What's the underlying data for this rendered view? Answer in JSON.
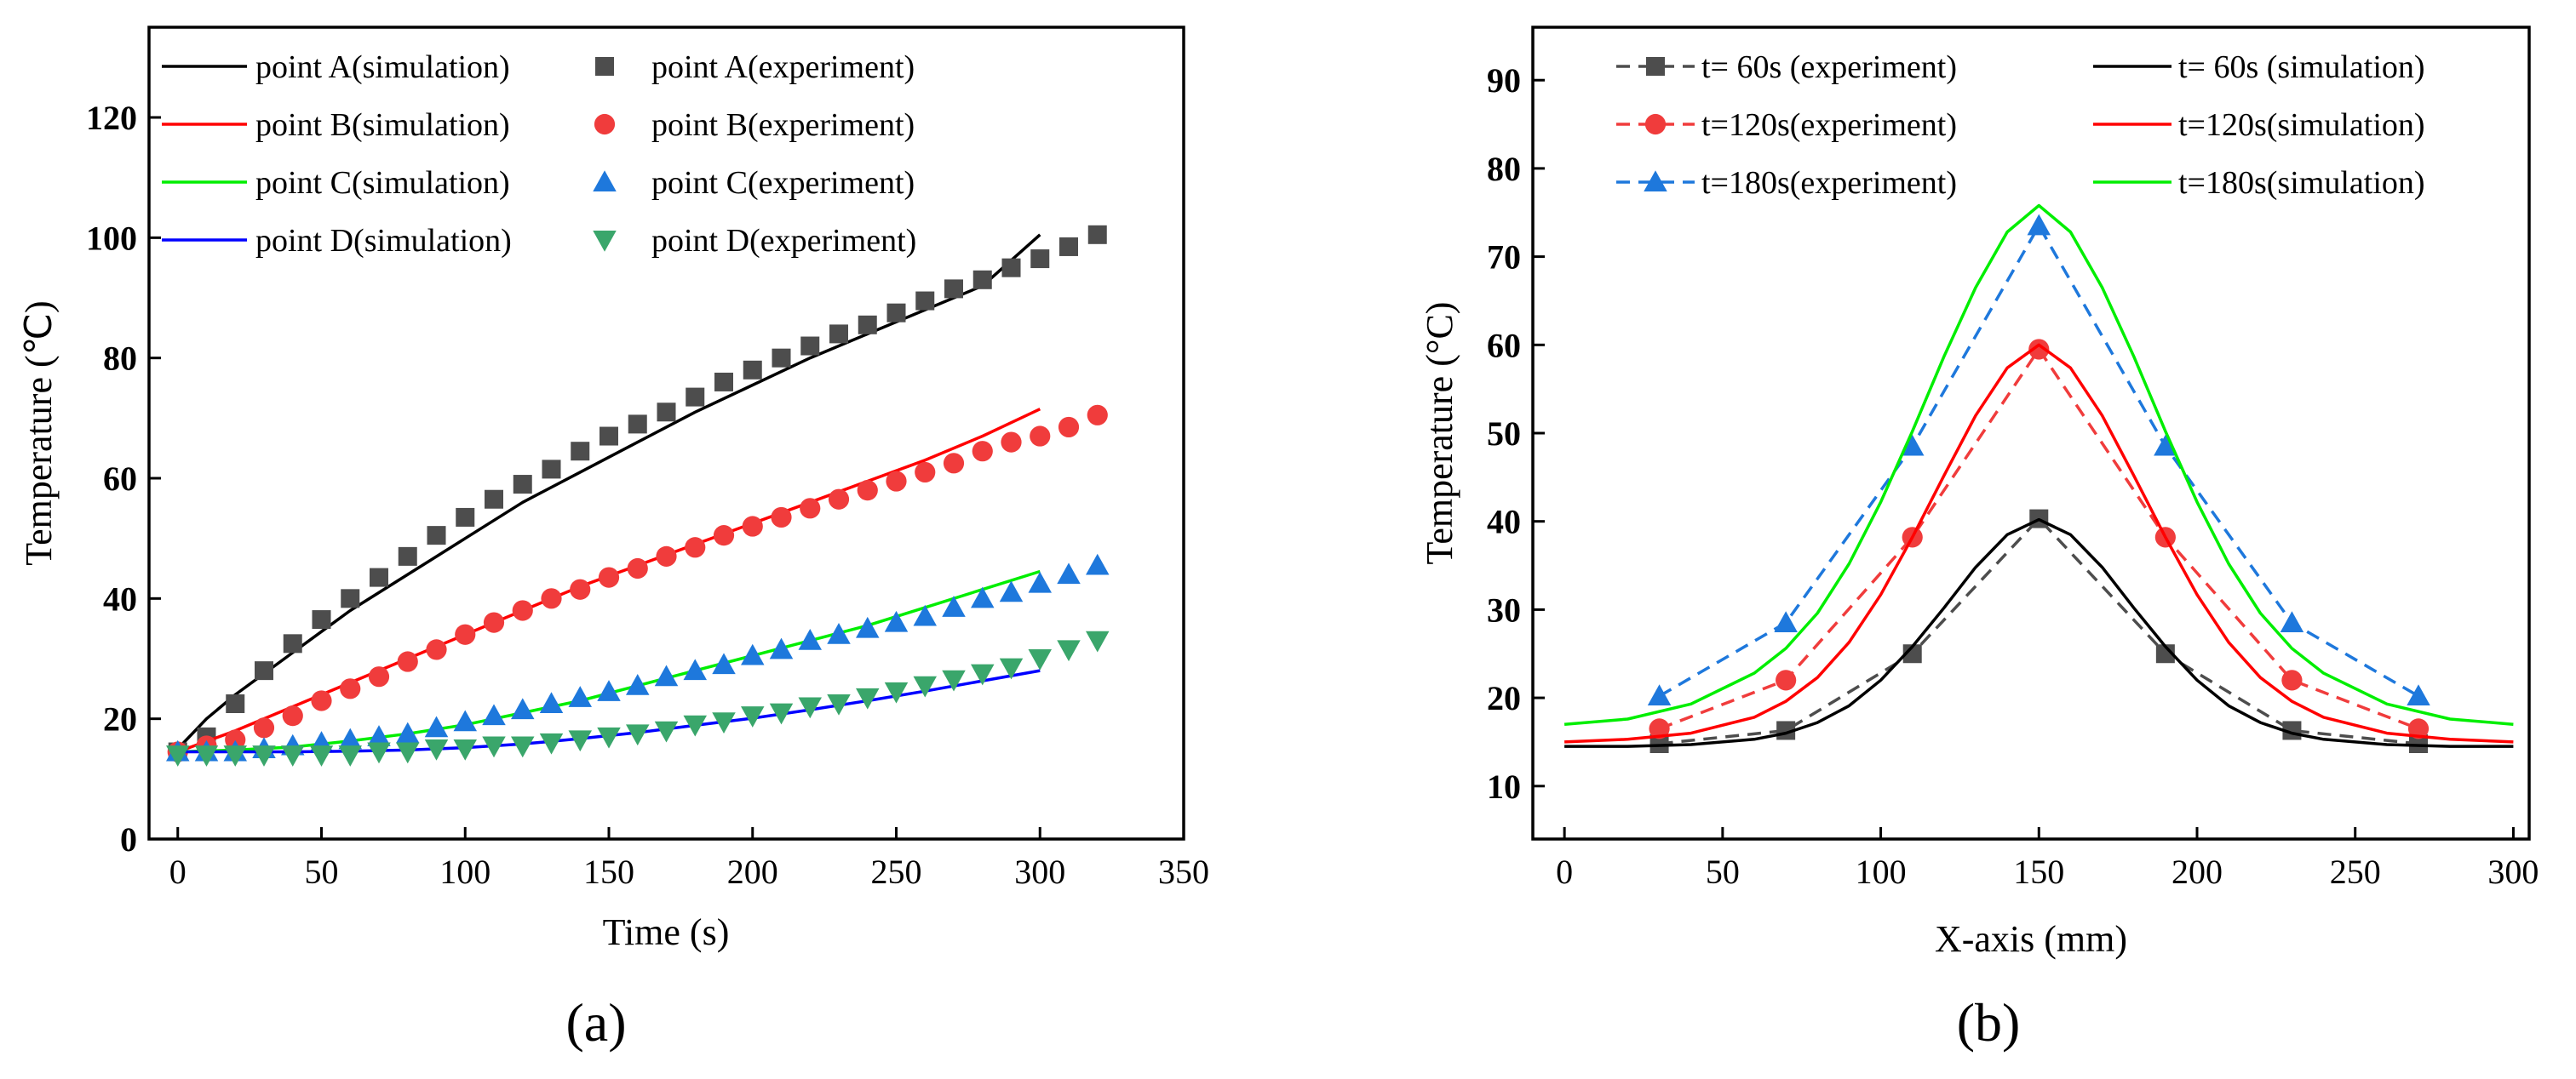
{
  "panels": [
    {
      "label": "(a)",
      "chart_data": {
        "type": "line",
        "title": "",
        "xlabel": "Time (s)",
        "ylabel": "Temperature (℃)",
        "xlim": [
          -10,
          350
        ],
        "ylim": [
          0,
          135
        ],
        "xticks": [
          0,
          50,
          100,
          150,
          200,
          250,
          300,
          350
        ],
        "yticks": [
          0,
          20,
          40,
          60,
          80,
          100,
          120
        ],
        "grid": false,
        "legend_position": "top-left",
        "legend_columns": 2,
        "series": [
          {
            "name": "point A(simulation)",
            "kind": "line",
            "color": "#000000",
            "x": [
              0,
              10,
              20,
              40,
              60,
              80,
              100,
              120,
              140,
              160,
              180,
              200,
              220,
              240,
              260,
              280,
              300
            ],
            "y": [
              15,
              20,
              24,
              31,
              38,
              44,
              50,
              56,
              61,
              66,
              71,
              75.5,
              80,
              84,
              88,
              92,
              100.5
            ]
          },
          {
            "name": "point A(experiment)",
            "kind": "marker",
            "marker": "square",
            "color": "#4d4d4d",
            "x": [
              0,
              10,
              20,
              30,
              40,
              50,
              60,
              70,
              80,
              90,
              100,
              110,
              120,
              130,
              140,
              150,
              160,
              170,
              180,
              190,
              200,
              210,
              220,
              230,
              240,
              250,
              260,
              270,
              280,
              290,
              300,
              310,
              320
            ],
            "y": [
              14.5,
              17,
              22.5,
              28,
              32.5,
              36.5,
              40,
              43.5,
              47,
              50.5,
              53.5,
              56.5,
              59,
              61.5,
              64.5,
              67,
              69,
              71,
              73.5,
              76,
              78,
              80,
              82,
              84,
              85.5,
              87.5,
              89.5,
              91.5,
              93,
              95,
              96.5,
              98.5,
              100.5
            ]
          },
          {
            "name": "point B(simulation)",
            "kind": "line",
            "color": "#ff0000",
            "x": [
              0,
              20,
              40,
              60,
              80,
              100,
              120,
              140,
              160,
              180,
              200,
              220,
              240,
              260,
              280,
              300
            ],
            "y": [
              14.5,
              18,
              22,
              26,
              30,
              34,
              38,
              42,
              45.5,
              49,
              52.5,
              56,
              59.5,
              63,
              67,
              71.5
            ]
          },
          {
            "name": "point B(experiment)",
            "kind": "marker",
            "marker": "circle",
            "color": "#f03c3c",
            "x": [
              0,
              10,
              20,
              30,
              40,
              50,
              60,
              70,
              80,
              90,
              100,
              110,
              120,
              130,
              140,
              150,
              160,
              170,
              180,
              190,
              200,
              210,
              220,
              230,
              240,
              250,
              260,
              270,
              280,
              290,
              300,
              310,
              320
            ],
            "y": [
              14.5,
              15.5,
              16.5,
              18.5,
              20.5,
              23,
              25,
              27,
              29.5,
              31.5,
              34,
              36,
              38,
              40,
              41.5,
              43.5,
              45,
              47,
              48.5,
              50.5,
              52,
              53.5,
              55,
              56.5,
              58,
              59.5,
              61,
              62.5,
              64.5,
              66,
              67,
              68.5,
              70.5
            ]
          },
          {
            "name": "point C(simulation)",
            "kind": "line",
            "color": "#00ee00",
            "x": [
              0,
              20,
              40,
              60,
              80,
              100,
              120,
              140,
              160,
              180,
              200,
              220,
              240,
              260,
              280,
              300
            ],
            "y": [
              14.5,
              14.8,
              15.3,
              16.3,
              17.5,
              19,
              21,
              23,
              25.5,
              28,
              30.5,
              33,
              35.5,
              38.5,
              41.5,
              44.5
            ]
          },
          {
            "name": "point C(experiment)",
            "kind": "marker",
            "marker": "triangle-up",
            "color": "#1e78dc",
            "x": [
              0,
              10,
              20,
              30,
              40,
              50,
              60,
              70,
              80,
              90,
              100,
              110,
              120,
              130,
              140,
              150,
              160,
              170,
              180,
              190,
              200,
              210,
              220,
              230,
              240,
              250,
              260,
              270,
              280,
              290,
              300,
              310,
              320
            ],
            "y": [
              14.5,
              14.5,
              14.5,
              15,
              15.5,
              16,
              16.5,
              17,
              17.5,
              18.5,
              19.5,
              20.5,
              21.5,
              22.5,
              23.5,
              24.5,
              25.5,
              27,
              28,
              29,
              30.5,
              31.5,
              33,
              34,
              35,
              36,
              37,
              38.5,
              40,
              41,
              42.5,
              44,
              45.5
            ]
          },
          {
            "name": "point D(simulation)",
            "kind": "line",
            "color": "#0000ff",
            "x": [
              0,
              20,
              40,
              60,
              80,
              100,
              120,
              140,
              160,
              180,
              200,
              220,
              240,
              260,
              280,
              300
            ],
            "y": [
              14.5,
              14.5,
              14.5,
              14.6,
              14.8,
              15.2,
              15.8,
              16.7,
              17.7,
              18.9,
              20.1,
              21.5,
              23,
              24.6,
              26.3,
              28
            ]
          },
          {
            "name": "point D(experiment)",
            "kind": "marker",
            "marker": "triangle-down",
            "color": "#3aa66b",
            "x": [
              0,
              10,
              20,
              30,
              40,
              50,
              60,
              70,
              80,
              90,
              100,
              110,
              120,
              130,
              140,
              150,
              160,
              170,
              180,
              190,
              200,
              210,
              220,
              230,
              240,
              250,
              260,
              270,
              280,
              290,
              300,
              310,
              320
            ],
            "y": [
              14,
              14,
              14,
              14,
              14,
              14,
              14,
              14.5,
              14.5,
              15,
              15,
              15.5,
              15.5,
              16,
              16.5,
              17,
              17.5,
              18,
              19,
              19.5,
              20.5,
              21,
              22,
              22.5,
              23.5,
              24.5,
              25.5,
              26.5,
              27.5,
              28.5,
              30,
              31.5,
              33
            ]
          }
        ]
      }
    },
    {
      "label": "(b)",
      "chart_data": {
        "type": "line",
        "title": "",
        "xlabel": "X-axis (mm)",
        "ylabel": "Temperature (°C)",
        "xlim": [
          -10,
          305
        ],
        "ylim": [
          4,
          96
        ],
        "xticks": [
          0,
          50,
          100,
          150,
          200,
          250,
          300
        ],
        "yticks": [
          10,
          20,
          30,
          40,
          50,
          60,
          70,
          80,
          90
        ],
        "grid": false,
        "legend_position": "top",
        "legend_columns": 2,
        "series": [
          {
            "name": "t= 60s (experiment)",
            "kind": "dashed-marker",
            "marker": "square",
            "color": "#4d4d4d",
            "x": [
              30,
              70,
              110,
              150,
              190,
              230,
              270
            ],
            "y": [
              14.8,
              16.3,
              25,
              40.3,
              25,
              16.3,
              14.8
            ]
          },
          {
            "name": "t= 60s (simulation)",
            "kind": "line",
            "color": "#000000",
            "x": [
              0,
              20,
              40,
              60,
              70,
              80,
              90,
              100,
              110,
              120,
              130,
              140,
              150,
              160,
              170,
              180,
              190,
              200,
              210,
              220,
              230,
              240,
              260,
              280,
              300
            ],
            "y": [
              14.5,
              14.5,
              14.7,
              15.3,
              16,
              17.2,
              19.1,
              22,
              25.8,
              30.2,
              34.8,
              38.5,
              40.2,
              38.5,
              34.8,
              30.2,
              25.8,
              22,
              19.1,
              17.2,
              16,
              15.3,
              14.7,
              14.5,
              14.5
            ]
          },
          {
            "name": "t=120s(experiment)",
            "kind": "dashed-marker",
            "marker": "circle",
            "color": "#f03c3c",
            "x": [
              30,
              70,
              110,
              150,
              190,
              230,
              270
            ],
            "y": [
              16.5,
              22,
              38.2,
              59.5,
              38.2,
              22,
              16.5
            ]
          },
          {
            "name": "t=120s(simulation)",
            "kind": "line",
            "color": "#ff0000",
            "x": [
              0,
              20,
              40,
              60,
              70,
              80,
              90,
              100,
              110,
              120,
              130,
              140,
              150,
              160,
              170,
              180,
              190,
              200,
              210,
              220,
              230,
              240,
              260,
              280,
              300
            ],
            "y": [
              15,
              15.3,
              16,
              17.8,
              19.6,
              22.3,
              26.3,
              31.7,
              38.2,
              45.2,
              52,
              57.4,
              60,
              57.4,
              52,
              45.2,
              38.2,
              31.7,
              26.3,
              22.3,
              19.6,
              17.8,
              16,
              15.3,
              15
            ]
          },
          {
            "name": "t=180s(experiment)",
            "kind": "dashed-marker",
            "marker": "triangle-up",
            "color": "#1e78dc",
            "x": [
              30,
              70,
              110,
              150,
              190,
              230,
              270
            ],
            "y": [
              20.2,
              28.5,
              48.5,
              73.5,
              48.5,
              28.5,
              20.2
            ]
          },
          {
            "name": "t=180s(simulation)",
            "kind": "line",
            "color": "#00ee00",
            "x": [
              0,
              20,
              40,
              60,
              70,
              80,
              90,
              100,
              110,
              120,
              130,
              140,
              150,
              160,
              170,
              180,
              190,
              200,
              210,
              220,
              230,
              240,
              260,
              280,
              300
            ],
            "y": [
              17,
              17.6,
              19.3,
              22.8,
              25.6,
              29.6,
              35.2,
              42.2,
              50.2,
              58.7,
              66.5,
              72.8,
              75.8,
              72.8,
              66.5,
              58.7,
              50.2,
              42.2,
              35.2,
              29.6,
              25.6,
              22.8,
              19.3,
              17.6,
              17
            ]
          }
        ]
      }
    }
  ]
}
